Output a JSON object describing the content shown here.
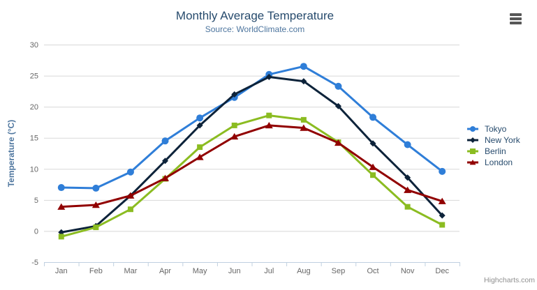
{
  "credits": "Highcharts.com",
  "export_menu": {
    "icon": "hamburger-menu-icon"
  },
  "palette": {
    "title": "#274b6d",
    "subtitle": "#4d759e",
    "axis_label": "#666666",
    "yaxis_title": "#4d759e",
    "gridline": "#d8d8d8",
    "axis_line": "#c0d0e0",
    "legend_text": "#274b6d",
    "credits_text": "#8f8f8f"
  },
  "chart_data": {
    "type": "line",
    "title": "Monthly Average Temperature",
    "subtitle": "Source: WorldClimate.com",
    "categories": [
      "Jan",
      "Feb",
      "Mar",
      "Apr",
      "May",
      "Jun",
      "Jul",
      "Aug",
      "Sep",
      "Oct",
      "Nov",
      "Dec"
    ],
    "xlabel": "",
    "ylabel": "Temperature (°C)",
    "ylim": [
      -5,
      30
    ],
    "ytick_step": 5,
    "yticks": [
      -5,
      0,
      5,
      10,
      15,
      20,
      25,
      30
    ],
    "grid": "horizontal",
    "legend_position": "right",
    "series": [
      {
        "name": "Tokyo",
        "color": "#2f7ed8",
        "symbol": "circle",
        "values": [
          7.0,
          6.9,
          9.5,
          14.5,
          18.2,
          21.5,
          25.2,
          26.5,
          23.3,
          18.3,
          13.9,
          9.6
        ]
      },
      {
        "name": "New York",
        "color": "#0d233a",
        "symbol": "diamond",
        "values": [
          -0.2,
          0.8,
          5.7,
          11.3,
          17.0,
          22.0,
          24.8,
          24.1,
          20.1,
          14.1,
          8.6,
          2.5
        ]
      },
      {
        "name": "Berlin",
        "color": "#8bbc21",
        "symbol": "square",
        "values": [
          -0.9,
          0.6,
          3.5,
          8.4,
          13.5,
          17.0,
          18.6,
          17.9,
          14.3,
          9.0,
          3.9,
          1.0
        ]
      },
      {
        "name": "London",
        "color": "#910000",
        "symbol": "triangle",
        "values": [
          3.9,
          4.2,
          5.7,
          8.5,
          11.9,
          15.2,
          17.0,
          16.6,
          14.2,
          10.3,
          6.6,
          4.8
        ]
      }
    ]
  }
}
